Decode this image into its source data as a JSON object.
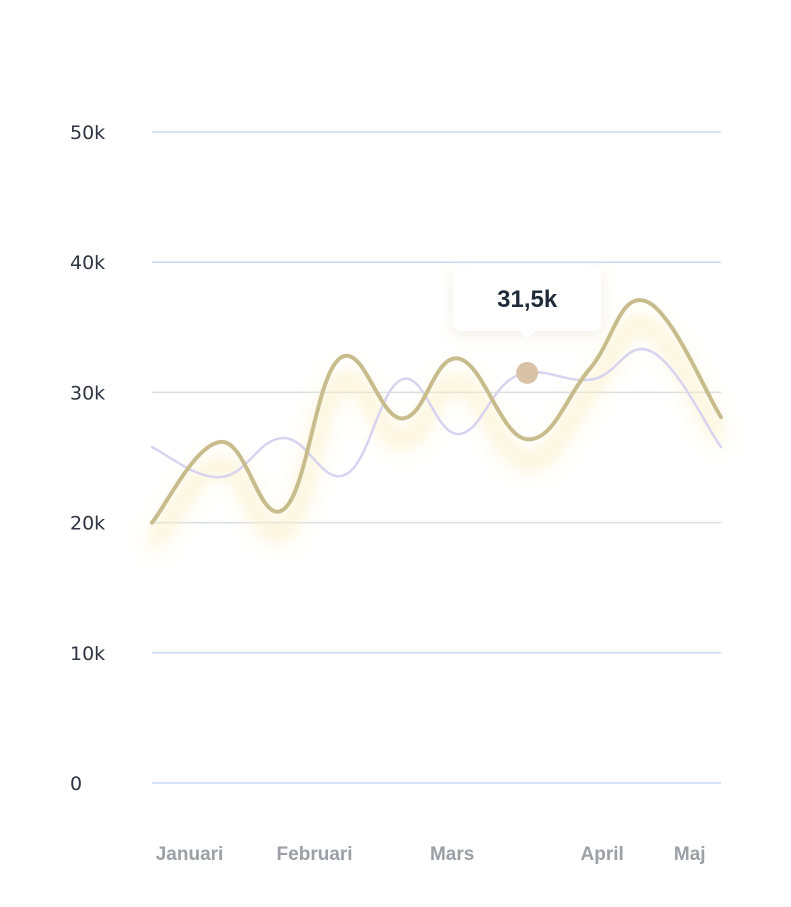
{
  "chart_data": {
    "type": "line",
    "x": [
      "Januari",
      "Februari",
      "Mars",
      "April",
      "Maj"
    ],
    "ylim": [
      0,
      50000
    ],
    "yticks": [
      {
        "value": 0,
        "label": "0"
      },
      {
        "value": 10000,
        "label": "10k"
      },
      {
        "value": 20000,
        "label": "20k"
      },
      {
        "value": 30000,
        "label": "30k"
      },
      {
        "value": 40000,
        "label": "40k"
      },
      {
        "value": 50000,
        "label": "50k"
      }
    ],
    "xticks": [
      {
        "pos": 0.3,
        "label": "Januari"
      },
      {
        "pos": 1.3,
        "label": "Februari"
      },
      {
        "pos": 2.4,
        "label": "Mars"
      },
      {
        "pos": 3.6,
        "label": "April"
      },
      {
        "pos": 4.3,
        "label": "Maj"
      }
    ],
    "grid": true,
    "series": [
      {
        "color": "#c9bc8c",
        "points": [
          [
            0.0,
            20000
          ],
          [
            0.55,
            26200
          ],
          [
            1.05,
            21000
          ],
          [
            1.5,
            32600
          ],
          [
            2.0,
            28000
          ],
          [
            2.45,
            32600
          ],
          [
            3.0,
            26400
          ],
          [
            3.5,
            31800
          ],
          [
            3.95,
            37000
          ],
          [
            4.55,
            28100
          ]
        ]
      },
      {
        "color": "#d7d3f0",
        "points": [
          [
            0.0,
            25800
          ],
          [
            0.55,
            23500
          ],
          [
            1.05,
            26500
          ],
          [
            1.55,
            23700
          ],
          [
            2.0,
            31000
          ],
          [
            2.45,
            26800
          ],
          [
            2.92,
            31300
          ],
          [
            3.52,
            31000
          ],
          [
            4.0,
            33100
          ],
          [
            4.55,
            25800
          ]
        ]
      }
    ],
    "highlight": {
      "x": 3.0,
      "y": 31500,
      "label": "31,5k",
      "color": "#d8c3a8"
    }
  }
}
